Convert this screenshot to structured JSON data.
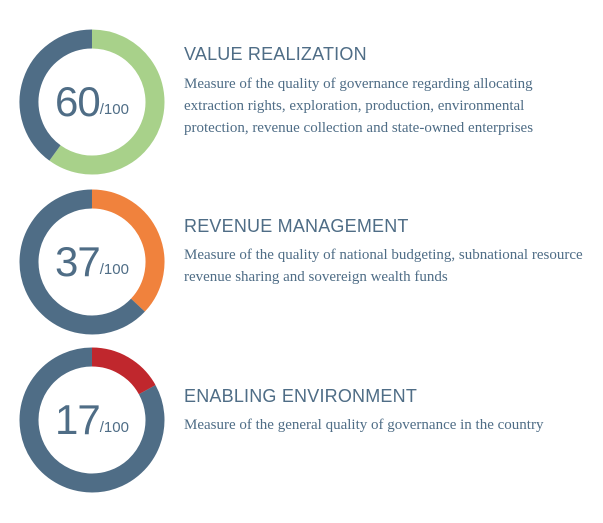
{
  "chart_data": [
    {
      "type": "pie",
      "variant": "donut",
      "value": 60,
      "max": 100,
      "score_label": "60",
      "max_label": "/100",
      "accent_color": "#a8d18a",
      "remainder_color": "#4f6d86",
      "title": "VALUE REALIZATION",
      "description": "Measure of the quality of governance regarding allocating extraction rights, exploration, production, environmental protection, revenue collection and state-owned enterprises"
    },
    {
      "type": "pie",
      "variant": "donut",
      "value": 37,
      "max": 100,
      "score_label": "37",
      "max_label": "/100",
      "accent_color": "#f0823d",
      "remainder_color": "#4f6d86",
      "title": "REVENUE MANAGEMENT",
      "description": "Measure of the quality of national budgeting, subnational resource revenue sharing and sovereign wealth funds"
    },
    {
      "type": "pie",
      "variant": "donut",
      "value": 17,
      "max": 100,
      "score_label": "17",
      "max_label": "/100",
      "accent_color": "#c0272d",
      "remainder_color": "#4f6d86",
      "title": "ENABLING ENVIRONMENT",
      "description": "Measure of the general quality of governance in the country"
    }
  ]
}
